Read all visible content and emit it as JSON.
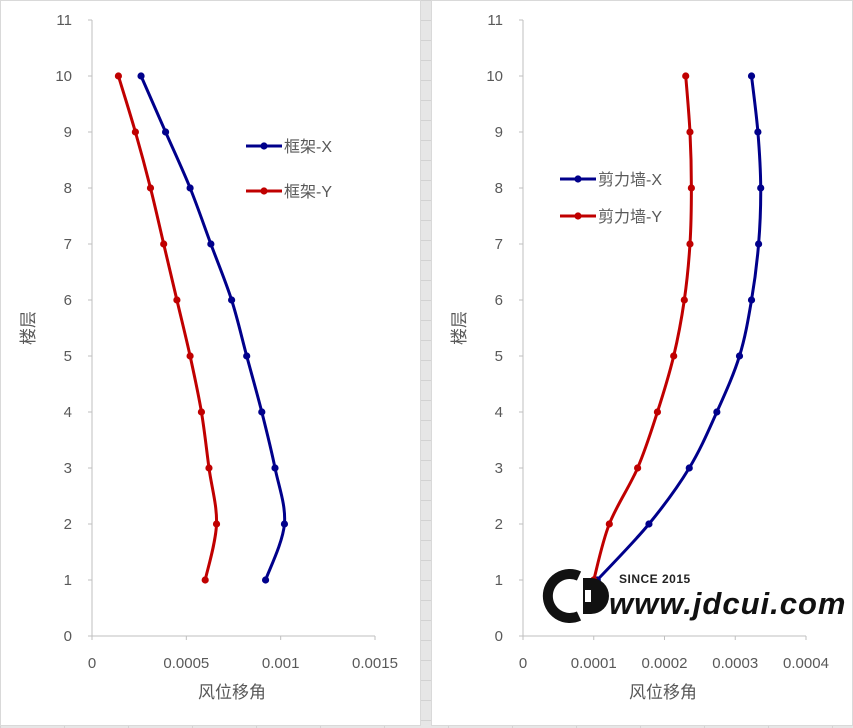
{
  "chart_data": [
    {
      "type": "line",
      "title": "",
      "xlabel": "风位移角",
      "ylabel": "楼层",
      "xlim": [
        0,
        0.0015
      ],
      "ylim": [
        0,
        11
      ],
      "x_ticks": [
        "0",
        "0.0005",
        "0.001",
        "0.0015"
      ],
      "y_ticks": [
        "0",
        "1",
        "2",
        "3",
        "4",
        "5",
        "6",
        "7",
        "8",
        "9",
        "10",
        "11"
      ],
      "grid": false,
      "legend_position": "right-upper",
      "series": [
        {
          "name": "框架-X",
          "color": "#00008b",
          "points": [
            [
              0.00092,
              1
            ],
            [
              0.00102,
              2
            ],
            [
              0.00097,
              3
            ],
            [
              0.0009,
              4
            ],
            [
              0.00082,
              5
            ],
            [
              0.00074,
              6
            ],
            [
              0.00063,
              7
            ],
            [
              0.00052,
              8
            ],
            [
              0.00039,
              9
            ],
            [
              0.00026,
              10
            ]
          ]
        },
        {
          "name": "框架-Y",
          "color": "#c00000",
          "points": [
            [
              0.0006,
              1
            ],
            [
              0.00066,
              2
            ],
            [
              0.00062,
              3
            ],
            [
              0.00058,
              4
            ],
            [
              0.00052,
              5
            ],
            [
              0.00045,
              6
            ],
            [
              0.00038,
              7
            ],
            [
              0.00031,
              8
            ],
            [
              0.00023,
              9
            ],
            [
              0.00014,
              10
            ]
          ]
        }
      ]
    },
    {
      "type": "line",
      "title": "",
      "xlabel": "风位移角",
      "ylabel": "楼层",
      "xlim": [
        0,
        0.0004
      ],
      "ylim": [
        0,
        11
      ],
      "x_ticks": [
        "0",
        "0.0001",
        "0.0002",
        "0.0003",
        "0.0004"
      ],
      "y_ticks": [
        "0",
        "1",
        "2",
        "3",
        "4",
        "5",
        "6",
        "7",
        "8",
        "9",
        "10",
        "11"
      ],
      "grid": false,
      "legend_position": "left-upper",
      "series": [
        {
          "name": "剪力墙-X",
          "color": "#00008b",
          "points": [
            [
              0.000105,
              1
            ],
            [
              0.000178,
              2
            ],
            [
              0.000235,
              3
            ],
            [
              0.000274,
              4
            ],
            [
              0.000306,
              5
            ],
            [
              0.000323,
              6
            ],
            [
              0.000333,
              7
            ],
            [
              0.000336,
              8
            ],
            [
              0.000332,
              9
            ],
            [
              0.000323,
              10
            ]
          ]
        },
        {
          "name": "剪力墙-Y",
          "color": "#c00000",
          "points": [
            [
              0.0001,
              1
            ],
            [
              0.000122,
              2
            ],
            [
              0.000162,
              3
            ],
            [
              0.00019,
              4
            ],
            [
              0.000213,
              5
            ],
            [
              0.000228,
              6
            ],
            [
              0.000236,
              7
            ],
            [
              0.000238,
              8
            ],
            [
              0.000236,
              9
            ],
            [
              0.00023,
              10
            ]
          ]
        }
      ]
    }
  ],
  "watermark": {
    "logo": "CD",
    "since": "SINCE 2015",
    "url": "www.jdcui.com"
  }
}
